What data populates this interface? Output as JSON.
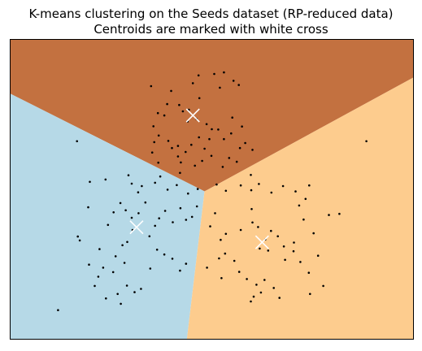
{
  "chart_data": {
    "type": "scatter",
    "title": "K-means clustering on the Seeds dataset (RP-reduced data)",
    "subtitle": "Centroids are marked with white cross",
    "xlabel": "",
    "ylabel": "",
    "xlim": [
      0,
      100
    ],
    "ylim": [
      0,
      100
    ],
    "axis_ticks": "none",
    "grid": false,
    "regions": [
      {
        "cluster": 1,
        "color": "#c37140"
      },
      {
        "cluster": 2,
        "color": "#b6d9e7"
      },
      {
        "cluster": 3,
        "color": "#fdcc8e"
      }
    ],
    "point_color": "#000000",
    "centroid_marker": {
      "shape": "x",
      "color": "#ffffff"
    },
    "centroids": [
      {
        "cluster": 1,
        "x": 45.3,
        "y": 74.7
      },
      {
        "cluster": 2,
        "x": 31.3,
        "y": 37.3
      },
      {
        "cluster": 3,
        "x": 62.5,
        "y": 32.3
      }
    ],
    "points": [
      [
        50.6,
        88.6
      ],
      [
        53.0,
        89.1
      ],
      [
        52.0,
        84.0
      ],
      [
        55.4,
        86.3
      ],
      [
        56.7,
        84.9
      ],
      [
        46.9,
        80.5
      ],
      [
        45.3,
        85.5
      ],
      [
        41.9,
        78.2
      ],
      [
        44.3,
        76.6
      ],
      [
        46.2,
        73.5
      ],
      [
        48.7,
        71.8
      ],
      [
        50.0,
        70.1
      ],
      [
        44.0,
        72.7
      ],
      [
        38.9,
        78.5
      ],
      [
        36.6,
        75.5
      ],
      [
        35.5,
        71.1
      ],
      [
        36.8,
        68.0
      ],
      [
        39.2,
        66.2
      ],
      [
        41.6,
        64.5
      ],
      [
        40.1,
        63.8
      ],
      [
        43.5,
        62.5
      ],
      [
        46.8,
        67.4
      ],
      [
        48.2,
        63.6
      ],
      [
        49.4,
        66.8
      ],
      [
        51.6,
        70.0
      ],
      [
        53.0,
        66.8
      ],
      [
        54.8,
        68.7
      ],
      [
        57.0,
        63.8
      ],
      [
        58.3,
        65.5
      ],
      [
        60.1,
        63.2
      ],
      [
        47.6,
        59.5
      ],
      [
        45.8,
        57.9
      ],
      [
        44.9,
        64.9
      ],
      [
        42.8,
        76.1
      ],
      [
        39.9,
        82.9
      ],
      [
        38.2,
        74.7
      ],
      [
        35.7,
        65.8
      ],
      [
        35.2,
        62.3
      ],
      [
        36.7,
        58.9
      ],
      [
        41.6,
        61.0
      ],
      [
        42.3,
        59.0
      ],
      [
        55.1,
        74.0
      ],
      [
        57.5,
        71.0
      ],
      [
        49.9,
        61.2
      ],
      [
        52.7,
        57.5
      ],
      [
        54.3,
        60.5
      ],
      [
        56.2,
        59.2
      ],
      [
        59.7,
        54.8
      ],
      [
        88.4,
        66.1
      ],
      [
        16.5,
        66.1
      ],
      [
        34.9,
        84.5
      ],
      [
        46.7,
        88.1
      ],
      [
        19.7,
        52.5
      ],
      [
        23.6,
        53.3
      ],
      [
        30.1,
        51.9
      ],
      [
        29.3,
        54.7
      ],
      [
        31.7,
        49.0
      ],
      [
        32.6,
        51.1
      ],
      [
        35.9,
        52.2
      ],
      [
        37.2,
        54.3
      ],
      [
        39.0,
        49.9
      ],
      [
        41.3,
        51.4
      ],
      [
        44.1,
        48.6
      ],
      [
        46.5,
        50.1
      ],
      [
        42.1,
        55.5
      ],
      [
        24.2,
        38.1
      ],
      [
        25.6,
        42.3
      ],
      [
        27.3,
        45.4
      ],
      [
        28.6,
        43.0
      ],
      [
        30.1,
        40.5
      ],
      [
        31.8,
        42.0
      ],
      [
        33.5,
        45.6
      ],
      [
        35.9,
        37.8
      ],
      [
        36.9,
        40.3
      ],
      [
        38.4,
        42.8
      ],
      [
        40.3,
        39.0
      ],
      [
        42.2,
        43.7
      ],
      [
        43.6,
        39.8
      ],
      [
        46.3,
        44.3
      ],
      [
        45.1,
        40.8
      ],
      [
        30.3,
        36.4
      ],
      [
        29.0,
        32.4
      ],
      [
        27.8,
        31.3
      ],
      [
        26.1,
        27.6
      ],
      [
        28.3,
        25.4
      ],
      [
        25.5,
        22.3
      ],
      [
        23.0,
        23.8
      ],
      [
        21.8,
        20.8
      ],
      [
        20.9,
        17.7
      ],
      [
        23.7,
        13.5
      ],
      [
        26.6,
        15.0
      ],
      [
        28.9,
        17.8
      ],
      [
        30.8,
        15.6
      ],
      [
        32.4,
        16.7
      ],
      [
        34.7,
        23.5
      ],
      [
        36.4,
        29.8
      ],
      [
        38.2,
        28.2
      ],
      [
        40.2,
        26.8
      ],
      [
        42.1,
        22.8
      ],
      [
        43.6,
        25.1
      ],
      [
        19.3,
        44.0
      ],
      [
        17.2,
        32.9
      ],
      [
        16.7,
        34.2
      ],
      [
        19.5,
        24.8
      ],
      [
        22.1,
        30.0
      ],
      [
        27.4,
        11.7
      ],
      [
        11.8,
        9.6
      ],
      [
        34.5,
        34.3
      ],
      [
        51.2,
        51.6
      ],
      [
        53.5,
        49.5
      ],
      [
        57.2,
        51.3
      ],
      [
        59.8,
        49.7
      ],
      [
        61.7,
        51.8
      ],
      [
        64.8,
        48.9
      ],
      [
        67.7,
        51.1
      ],
      [
        70.8,
        49.3
      ],
      [
        73.3,
        46.8
      ],
      [
        74.2,
        51.3
      ],
      [
        57.2,
        36.4
      ],
      [
        60.1,
        38.9
      ],
      [
        61.5,
        37.4
      ],
      [
        63.3,
        33.2
      ],
      [
        64.7,
        36.1
      ],
      [
        66.4,
        34.3
      ],
      [
        67.9,
        30.9
      ],
      [
        70.4,
        32.2
      ],
      [
        72.8,
        39.9
      ],
      [
        75.3,
        35.3
      ],
      [
        79.1,
        41.4
      ],
      [
        81.7,
        41.8
      ],
      [
        50.8,
        42.0
      ],
      [
        49.6,
        37.6
      ],
      [
        52.2,
        33.1
      ],
      [
        53.3,
        28.5
      ],
      [
        55.6,
        26.1
      ],
      [
        56.8,
        22.4
      ],
      [
        58.7,
        20.0
      ],
      [
        61.1,
        18.1
      ],
      [
        62.2,
        15.5
      ],
      [
        63.1,
        19.7
      ],
      [
        65.4,
        17.0
      ],
      [
        68.2,
        26.4
      ],
      [
        70.3,
        29.3
      ],
      [
        72.0,
        25.7
      ],
      [
        74.1,
        22.1
      ],
      [
        76.4,
        27.8
      ],
      [
        77.7,
        17.7
      ],
      [
        74.4,
        15.0
      ],
      [
        59.7,
        12.5
      ],
      [
        52.4,
        20.3
      ],
      [
        48.8,
        23.8
      ],
      [
        51.8,
        26.9
      ],
      [
        66.8,
        13.7
      ],
      [
        60.4,
        14.1
      ],
      [
        53.5,
        35.1
      ],
      [
        61.9,
        30.2
      ],
      [
        64.0,
        29.5
      ],
      [
        59.9,
        43.4
      ],
      [
        71.7,
        44.6
      ]
    ]
  }
}
